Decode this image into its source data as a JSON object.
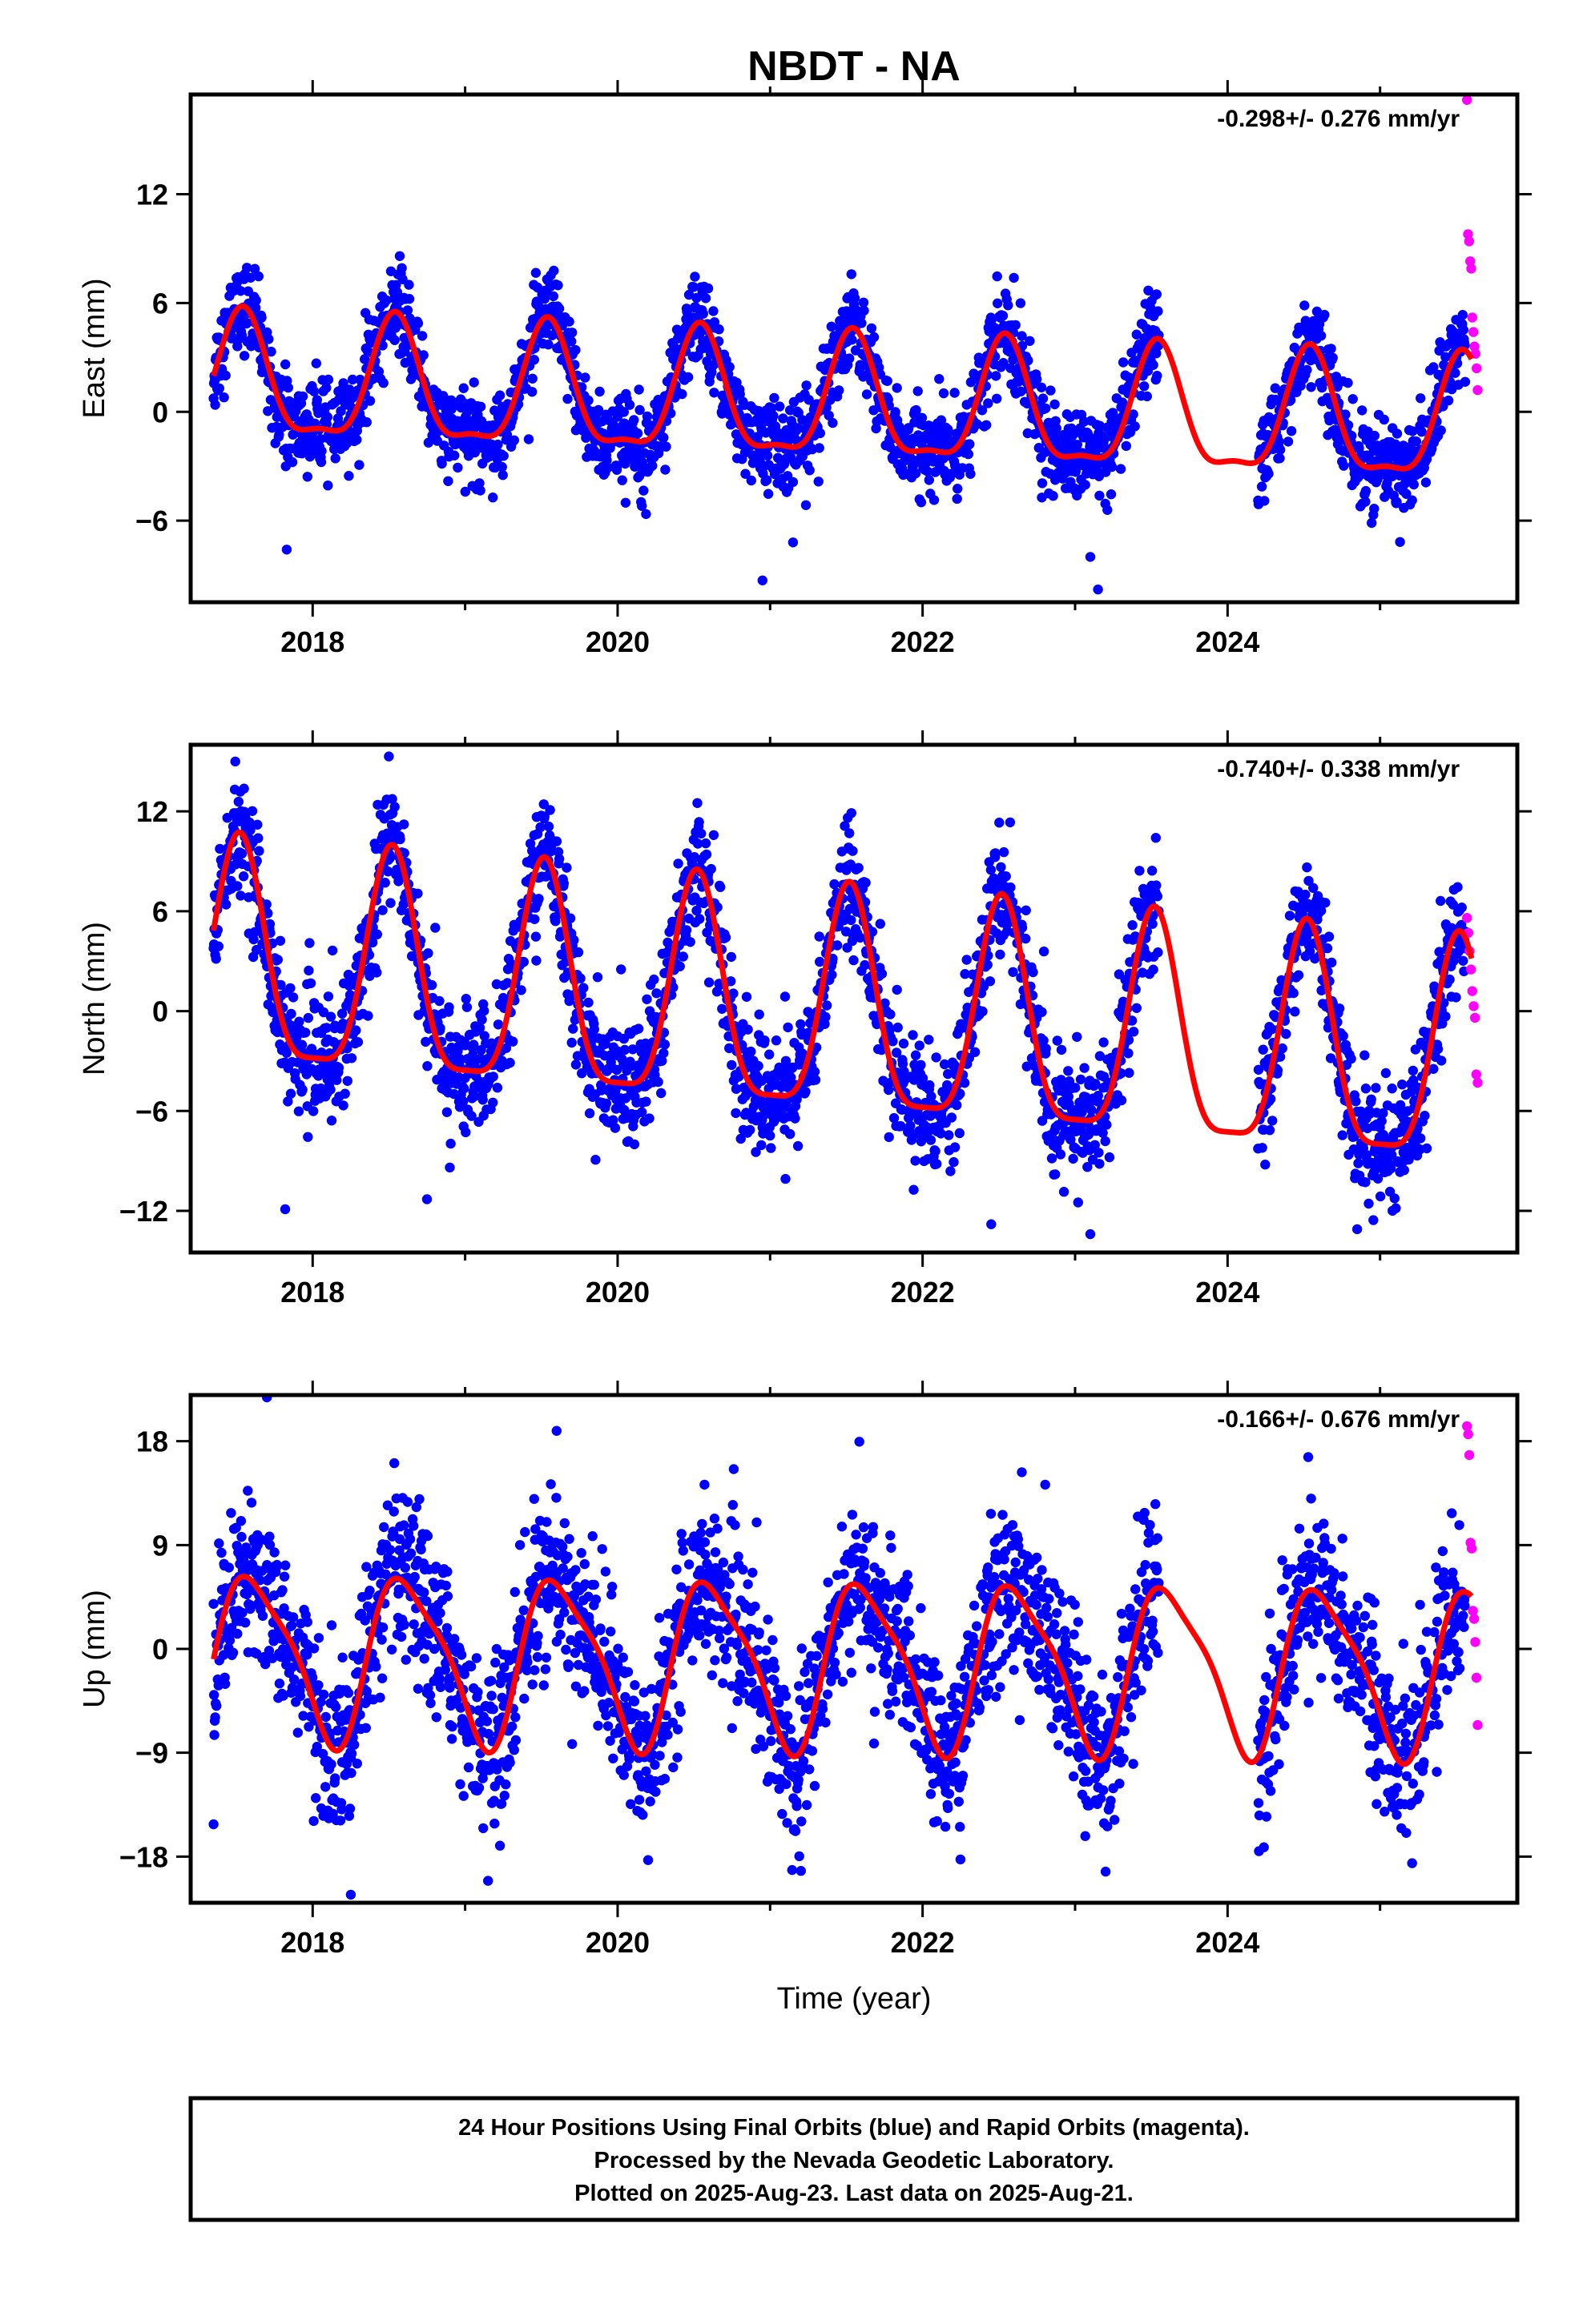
{
  "title": "NBDT - NA",
  "xlabel": "Time (year)",
  "footer": [
    "24 Hour Positions Using Final Orbits (blue) and Rapid Orbits (magenta).",
    "Processed by the Nevada Geodetic Laboratory.",
    "Plotted on 2025-Aug-23. Last data on 2025-Aug-21."
  ],
  "colors": {
    "final": "#0000ff",
    "rapid": "#ff00ff",
    "model": "#ff0000",
    "frame": "#000000"
  },
  "chart_data": [
    {
      "type": "scatter",
      "component": "east",
      "ylabel": "East (mm)",
      "rate": "-0.298+/- 0.276 mm/yr",
      "xlim": [
        2017.2,
        2025.9
      ],
      "ylim": [
        -10.5,
        17.5
      ],
      "xticks": [
        2018,
        2020,
        2022,
        2024
      ],
      "yticks": [
        -6,
        0,
        6,
        12
      ],
      "model": {
        "description": "annual + semiannual seasonal fit",
        "x_start": 2017.35,
        "x_end": 2025.6,
        "offset": 0.3,
        "annual_amp": 3.3,
        "annual_peak": 2017.54,
        "semiannual_amp": 1.05,
        "semiannual_peak": 2017.54,
        "rate": -0.298,
        "rate_ref": 2021.5
      },
      "final_gaps": [
        [
          2023.55,
          2024.2
        ]
      ],
      "final_scatter": 1.2,
      "outliers": [
        [
          2023.15,
          -9.8
        ],
        [
          2020.95,
          -9.3
        ],
        [
          2017.83,
          -7.6
        ],
        [
          2021.15,
          -7.2
        ],
        [
          2023.1,
          -8.0
        ]
      ],
      "rapid": {
        "x_start": 2025.57,
        "x_end": 2025.64,
        "values": [
          17.2,
          9.8,
          9.4,
          8.3,
          7.9,
          5.2,
          4.4,
          3.6,
          3.2,
          2.4,
          1.2
        ]
      }
    },
    {
      "type": "scatter",
      "component": "north",
      "ylabel": "North (mm)",
      "rate": "-0.740+/- 0.338 mm/yr",
      "xlim": [
        2017.2,
        2025.9
      ],
      "ylim": [
        -14.5,
        16
      ],
      "xticks": [
        2018,
        2020,
        2022,
        2024
      ],
      "yticks": [
        -12,
        -6,
        0,
        6,
        12
      ],
      "model": {
        "description": "annual + semiannual seasonal fit",
        "x_start": 2017.35,
        "x_end": 2025.6,
        "offset": -0.5,
        "annual_amp": 6.6,
        "annual_peak": 2017.52,
        "semiannual_amp": 1.7,
        "semiannual_peak": 2017.52,
        "rate": -0.74,
        "rate_ref": 2021.5
      },
      "final_gaps": [
        [
          2023.55,
          2024.2
        ]
      ],
      "final_scatter": 1.8,
      "outliers": [
        [
          2018.5,
          15.3
        ],
        [
          2017.82,
          -11.9
        ],
        [
          2018.75,
          -11.3
        ],
        [
          2023.1,
          -13.4
        ],
        [
          2024.85,
          -13.1
        ],
        [
          2022.45,
          -12.8
        ]
      ],
      "rapid": {
        "x_start": 2025.57,
        "x_end": 2025.64,
        "values": [
          5.6,
          4.7,
          3.6,
          2.5,
          1.2,
          0.3,
          -0.4,
          -3.8,
          -4.3
        ]
      }
    },
    {
      "type": "scatter",
      "component": "up",
      "ylabel": "Up (mm)",
      "rate": "-0.166+/- 0.676 mm/yr",
      "xlim": [
        2017.2,
        2025.9
      ],
      "ylim": [
        -22,
        22
      ],
      "xticks": [
        2018,
        2020,
        2022,
        2024
      ],
      "yticks": [
        -18,
        -9,
        0,
        9,
        18
      ],
      "model": {
        "description": "annual + semiannual seasonal fit",
        "x_start": 2017.35,
        "x_end": 2025.6,
        "offset": -1.2,
        "annual_amp": 7.0,
        "annual_peak": 2017.62,
        "semiannual_amp": 1.6,
        "semiannual_peak": 2017.45,
        "rate": -0.166,
        "rate_ref": 2021.5
      },
      "final_gaps": [
        [
          2023.55,
          2024.2
        ]
      ],
      "final_scatter": 3.5,
      "outliers": [
        [
          2017.7,
          21.8
        ],
        [
          2019.6,
          18.9
        ],
        [
          2018.25,
          -21.3
        ],
        [
          2019.15,
          -20.1
        ],
        [
          2017.35,
          -15.2
        ],
        [
          2023.2,
          -19.3
        ],
        [
          2020.2,
          -18.3
        ]
      ],
      "rapid": {
        "x_start": 2025.57,
        "x_end": 2025.64,
        "values": [
          19.3,
          18.6,
          16.8,
          9.2,
          8.7,
          3.3,
          2.6,
          0.6,
          -2.5,
          -6.6
        ]
      }
    }
  ]
}
